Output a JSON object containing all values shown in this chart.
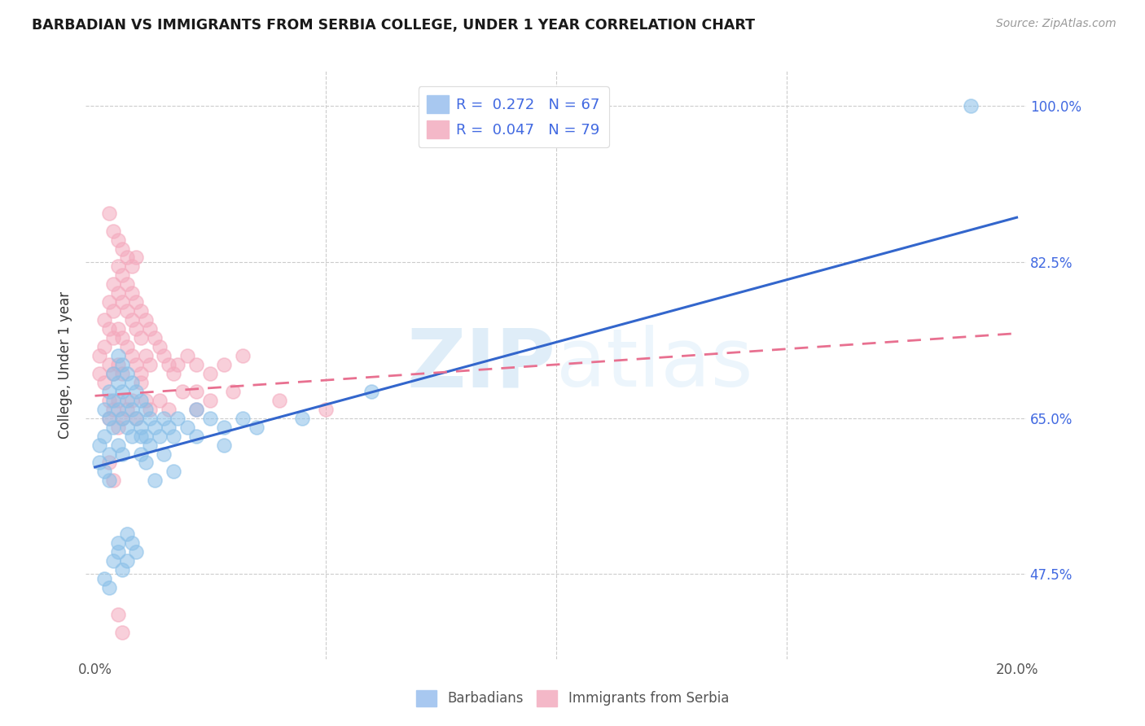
{
  "title": "BARBADIAN VS IMMIGRANTS FROM SERBIA COLLEGE, UNDER 1 YEAR CORRELATION CHART",
  "source": "Source: ZipAtlas.com",
  "ylabel": "College, Under 1 year",
  "series1_color": "#89bfe8",
  "series2_color": "#f4a8bc",
  "line1_color": "#3366cc",
  "line2_color": "#e87090",
  "watermark_color": "#d8eaf8",
  "legend_color": "#4169e1",
  "R1": 0.272,
  "N1": 67,
  "R2": 0.047,
  "N2": 79,
  "xmin": 0.0,
  "xmax": 0.2,
  "ymin": 0.38,
  "ymax": 1.04,
  "ytick_values": [
    1.0,
    0.825,
    0.65,
    0.475
  ],
  "ytick_labels": [
    "100.0%",
    "82.5%",
    "65.0%",
    "47.5%"
  ],
  "xtick_values": [
    0.0,
    0.2
  ],
  "xtick_labels": [
    "0.0%",
    "20.0%"
  ],
  "line1_x0": 0.0,
  "line1_y0": 0.595,
  "line1_x1": 0.2,
  "line1_y1": 0.875,
  "line2_x0": 0.0,
  "line2_y0": 0.675,
  "line2_x1": 0.2,
  "line2_y1": 0.745,
  "barbadian_x": [
    0.001,
    0.001,
    0.002,
    0.002,
    0.002,
    0.003,
    0.003,
    0.003,
    0.003,
    0.004,
    0.004,
    0.004,
    0.005,
    0.005,
    0.005,
    0.005,
    0.006,
    0.006,
    0.006,
    0.006,
    0.007,
    0.007,
    0.007,
    0.008,
    0.008,
    0.008,
    0.009,
    0.009,
    0.01,
    0.01,
    0.01,
    0.011,
    0.011,
    0.012,
    0.012,
    0.013,
    0.014,
    0.015,
    0.016,
    0.017,
    0.018,
    0.02,
    0.022,
    0.025,
    0.028,
    0.032,
    0.002,
    0.003,
    0.004,
    0.005,
    0.005,
    0.006,
    0.007,
    0.007,
    0.008,
    0.009,
    0.01,
    0.011,
    0.013,
    0.015,
    0.017,
    0.022,
    0.028,
    0.035,
    0.045,
    0.06,
    0.19
  ],
  "barbadian_y": [
    0.62,
    0.6,
    0.66,
    0.63,
    0.59,
    0.68,
    0.65,
    0.61,
    0.58,
    0.7,
    0.67,
    0.64,
    0.72,
    0.69,
    0.66,
    0.62,
    0.71,
    0.68,
    0.65,
    0.61,
    0.7,
    0.67,
    0.64,
    0.69,
    0.66,
    0.63,
    0.68,
    0.65,
    0.67,
    0.64,
    0.61,
    0.66,
    0.63,
    0.65,
    0.62,
    0.64,
    0.63,
    0.65,
    0.64,
    0.63,
    0.65,
    0.64,
    0.66,
    0.65,
    0.64,
    0.65,
    0.47,
    0.46,
    0.49,
    0.5,
    0.51,
    0.48,
    0.52,
    0.49,
    0.51,
    0.5,
    0.63,
    0.6,
    0.58,
    0.61,
    0.59,
    0.63,
    0.62,
    0.64,
    0.65,
    0.68,
    1.0
  ],
  "serbia_x": [
    0.001,
    0.001,
    0.002,
    0.002,
    0.002,
    0.003,
    0.003,
    0.003,
    0.003,
    0.004,
    0.004,
    0.004,
    0.004,
    0.005,
    0.005,
    0.005,
    0.005,
    0.006,
    0.006,
    0.006,
    0.006,
    0.007,
    0.007,
    0.007,
    0.008,
    0.008,
    0.008,
    0.009,
    0.009,
    0.009,
    0.01,
    0.01,
    0.01,
    0.011,
    0.011,
    0.012,
    0.012,
    0.013,
    0.014,
    0.015,
    0.016,
    0.017,
    0.018,
    0.02,
    0.022,
    0.025,
    0.028,
    0.032,
    0.003,
    0.004,
    0.005,
    0.005,
    0.006,
    0.007,
    0.008,
    0.009,
    0.01,
    0.011,
    0.012,
    0.014,
    0.016,
    0.019,
    0.025,
    0.03,
    0.04,
    0.022,
    0.003,
    0.004,
    0.005,
    0.006,
    0.007,
    0.008,
    0.009,
    0.003,
    0.004,
    0.005,
    0.006,
    0.022,
    0.05
  ],
  "serbia_y": [
    0.72,
    0.7,
    0.76,
    0.73,
    0.69,
    0.78,
    0.75,
    0.71,
    0.67,
    0.8,
    0.77,
    0.74,
    0.7,
    0.82,
    0.79,
    0.75,
    0.71,
    0.81,
    0.78,
    0.74,
    0.7,
    0.8,
    0.77,
    0.73,
    0.79,
    0.76,
    0.72,
    0.78,
    0.75,
    0.71,
    0.77,
    0.74,
    0.7,
    0.76,
    0.72,
    0.75,
    0.71,
    0.74,
    0.73,
    0.72,
    0.71,
    0.7,
    0.71,
    0.72,
    0.71,
    0.7,
    0.71,
    0.72,
    0.65,
    0.66,
    0.67,
    0.64,
    0.65,
    0.66,
    0.67,
    0.65,
    0.69,
    0.67,
    0.66,
    0.67,
    0.66,
    0.68,
    0.67,
    0.68,
    0.67,
    0.66,
    0.88,
    0.86,
    0.85,
    0.84,
    0.83,
    0.82,
    0.83,
    0.6,
    0.58,
    0.43,
    0.41,
    0.68,
    0.66
  ]
}
